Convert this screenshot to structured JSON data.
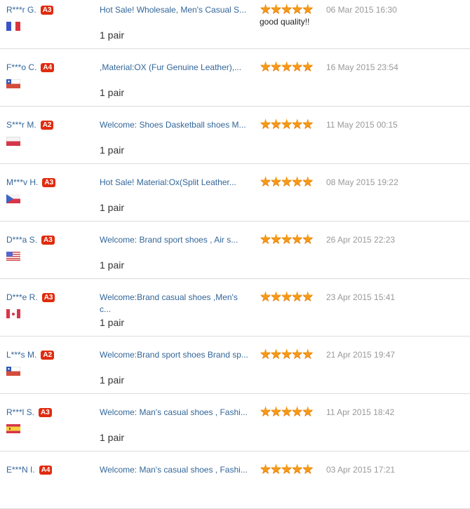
{
  "accent_color": "#e02b0e",
  "star_color": "#f59a17",
  "feedback": [
    {
      "buyer": "R***r G.",
      "level": "A3",
      "country_flag": "france",
      "product": "Hot Sale! Wholesale, Men's Casual S...",
      "quantity": "1 pair",
      "rating": 5,
      "comment": "good quality!!",
      "date": "06 Mar 2015 16:30"
    },
    {
      "buyer": "F***o C.",
      "level": "A4",
      "country_flag": "chile",
      "product": ",Material:OX (Fur Genuine Leather),...",
      "quantity": "1 pair",
      "rating": 5,
      "comment": "",
      "date": "16 May 2015 23:54"
    },
    {
      "buyer": "S***r M.",
      "level": "A2",
      "country_flag": "poland",
      "product": "Welcome: Shoes Dasketball shoes M...",
      "quantity": "1 pair",
      "rating": 5,
      "comment": "",
      "date": "11 May 2015 00:15"
    },
    {
      "buyer": "M***v H.",
      "level": "A3",
      "country_flag": "czech",
      "product": "Hot Sale! Material:Ox(Split Leather...",
      "quantity": "1 pair",
      "rating": 5,
      "comment": "",
      "date": "08 May 2015 19:22"
    },
    {
      "buyer": "D***a S.",
      "level": "A3",
      "country_flag": "usa",
      "product": "Welcome: Brand sport shoes , Air s...",
      "quantity": "1 pair",
      "rating": 5,
      "comment": "",
      "date": "26 Apr 2015 22:23"
    },
    {
      "buyer": "D***e R.",
      "level": "A3",
      "country_flag": "canada",
      "product": "Welcome:Brand casual shoes ,Men's c...",
      "quantity": "1 pair",
      "rating": 5,
      "comment": "",
      "date": "23 Apr 2015 15:41"
    },
    {
      "buyer": "L***s M.",
      "level": "A2",
      "country_flag": "chile",
      "product": "Welcome:Brand sport shoes Brand sp...",
      "quantity": "1 pair",
      "rating": 5,
      "comment": "",
      "date": "21 Apr 2015 19:47"
    },
    {
      "buyer": "R***l S.",
      "level": "A3",
      "country_flag": "spain",
      "product": "Welcome: Man's casual shoes , Fashi...",
      "quantity": "1 pair",
      "rating": 5,
      "comment": "",
      "date": "11 Apr 2015 18:42"
    },
    {
      "buyer": "E***N I.",
      "level": "A4",
      "country_flag": "",
      "product": "Welcome: Man's casual shoes , Fashi...",
      "quantity": "",
      "rating": 5,
      "comment": "",
      "date": "03 Apr 2015 17:21"
    }
  ]
}
